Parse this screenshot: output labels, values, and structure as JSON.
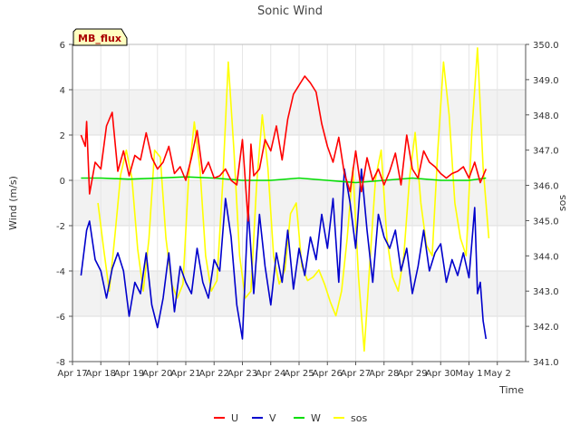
{
  "chart_data": {
    "type": "line",
    "title": "Sonic Wind",
    "badge": "MB_flux",
    "xlabel": "Time",
    "ylabel": "Wind (m/s)",
    "y2label": "sos",
    "xlim": [
      0,
      16
    ],
    "ylim": [
      -8,
      6
    ],
    "y2lim": [
      341.0,
      350.0
    ],
    "x_tick_values": [
      0,
      1,
      2,
      3,
      4,
      5,
      6,
      7,
      8,
      9,
      10,
      11,
      12,
      13,
      14,
      15
    ],
    "x_tick_labels": [
      "Apr 17",
      "Apr 18",
      "Apr 19",
      "Apr 20",
      "Apr 21",
      "Apr 22",
      "Apr 23",
      "Apr 24",
      "Apr 25",
      "Apr 26",
      "Apr 27",
      "Apr 28",
      "Apr 29",
      "Apr 30",
      "May 1",
      "May 2"
    ],
    "y_ticks": [
      -8,
      -6,
      -4,
      -2,
      0,
      2,
      4,
      6
    ],
    "y2_ticks": [
      341.0,
      342.0,
      343.0,
      344.0,
      345.0,
      346.0,
      347.0,
      348.0,
      349.0,
      350.0
    ],
    "grid": true,
    "legend_position": "bottom-center",
    "series": [
      {
        "name": "U",
        "color": "#ff0000",
        "axis": "left",
        "x": [
          0.3,
          0.45,
          0.5,
          0.6,
          0.8,
          1.0,
          1.2,
          1.4,
          1.6,
          1.8,
          2.0,
          2.2,
          2.4,
          2.6,
          2.8,
          3.0,
          3.2,
          3.4,
          3.6,
          3.8,
          4.0,
          4.2,
          4.4,
          4.6,
          4.8,
          5.0,
          5.2,
          5.4,
          5.6,
          5.8,
          6.0,
          6.2,
          6.3,
          6.4,
          6.6,
          6.8,
          7.0,
          7.2,
          7.4,
          7.6,
          7.8,
          8.0,
          8.2,
          8.4,
          8.6,
          8.8,
          9.0,
          9.2,
          9.4,
          9.6,
          9.8,
          10.0,
          10.2,
          10.4,
          10.6,
          10.8,
          11.0,
          11.2,
          11.4,
          11.6,
          11.8,
          12.0,
          12.2,
          12.4,
          12.6,
          12.8,
          13.0,
          13.2,
          13.4,
          13.6,
          13.8,
          14.0,
          14.2,
          14.4,
          14.6
        ],
        "y": [
          2.0,
          1.5,
          2.6,
          -0.6,
          0.8,
          0.5,
          2.4,
          3.0,
          0.4,
          1.3,
          0.2,
          1.1,
          0.9,
          2.1,
          1.0,
          0.5,
          0.8,
          1.5,
          0.3,
          0.6,
          0.0,
          1.0,
          2.2,
          0.3,
          0.8,
          0.1,
          0.2,
          0.5,
          0.0,
          -0.2,
          1.8,
          -1.8,
          1.6,
          0.2,
          0.5,
          1.8,
          1.3,
          2.4,
          0.9,
          2.7,
          3.8,
          4.2,
          4.6,
          4.3,
          3.9,
          2.5,
          1.5,
          0.8,
          1.9,
          0.3,
          -0.5,
          1.3,
          -0.5,
          1.0,
          0.0,
          0.5,
          -0.2,
          0.4,
          1.2,
          -0.2,
          2.0,
          0.5,
          0.1,
          1.3,
          0.8,
          0.6,
          0.3,
          0.1,
          0.3,
          0.4,
          0.6,
          0.1,
          0.8,
          -0.1,
          0.5
        ]
      },
      {
        "name": "V",
        "color": "#0000cc",
        "axis": "left",
        "x": [
          0.3,
          0.5,
          0.6,
          0.8,
          1.0,
          1.2,
          1.4,
          1.6,
          1.8,
          2.0,
          2.2,
          2.4,
          2.6,
          2.8,
          3.0,
          3.2,
          3.4,
          3.6,
          3.8,
          4.0,
          4.2,
          4.4,
          4.6,
          4.8,
          5.0,
          5.2,
          5.4,
          5.6,
          5.8,
          6.0,
          6.2,
          6.4,
          6.6,
          6.8,
          7.0,
          7.2,
          7.4,
          7.6,
          7.8,
          8.0,
          8.2,
          8.4,
          8.6,
          8.8,
          9.0,
          9.2,
          9.4,
          9.6,
          9.8,
          10.0,
          10.2,
          10.4,
          10.6,
          10.8,
          11.0,
          11.2,
          11.4,
          11.6,
          11.8,
          12.0,
          12.2,
          12.4,
          12.6,
          12.8,
          13.0,
          13.2,
          13.4,
          13.6,
          13.8,
          14.0,
          14.2,
          14.3,
          14.4,
          14.5,
          14.6
        ],
        "y": [
          -4.2,
          -2.2,
          -1.8,
          -3.5,
          -4.0,
          -5.2,
          -3.9,
          -3.2,
          -4.0,
          -6.0,
          -4.5,
          -5.0,
          -3.2,
          -5.5,
          -6.5,
          -5.2,
          -3.2,
          -5.8,
          -3.8,
          -4.5,
          -5.0,
          -3.0,
          -4.5,
          -5.2,
          -3.5,
          -4.0,
          -0.8,
          -2.5,
          -5.5,
          -7.0,
          -1.2,
          -5.0,
          -1.5,
          -3.8,
          -5.5,
          -3.2,
          -4.5,
          -2.2,
          -4.8,
          -3.0,
          -4.2,
          -2.5,
          -3.5,
          -1.5,
          -3.0,
          -0.8,
          -4.5,
          0.5,
          -1.0,
          -3.0,
          0.5,
          -2.2,
          -4.5,
          -1.5,
          -2.5,
          -3.0,
          -2.2,
          -4.0,
          -3.0,
          -5.0,
          -3.8,
          -2.2,
          -4.0,
          -3.2,
          -2.8,
          -4.5,
          -3.5,
          -4.2,
          -3.2,
          -4.3,
          -1.2,
          -5.0,
          -4.5,
          -6.2,
          -7.0
        ]
      },
      {
        "name": "W",
        "color": "#00dd00",
        "axis": "left",
        "x": [
          0.3,
          1.0,
          2.0,
          3.0,
          4.0,
          5.0,
          6.0,
          7.0,
          8.0,
          9.0,
          10.0,
          11.0,
          12.0,
          13.0,
          14.0,
          14.6
        ],
        "y": [
          0.1,
          0.1,
          0.05,
          0.1,
          0.15,
          0.1,
          0.0,
          0.0,
          0.1,
          0.0,
          -0.1,
          0.0,
          0.1,
          0.0,
          0.0,
          0.1
        ]
      },
      {
        "name": "sos",
        "color": "#ffff00",
        "axis": "right",
        "x": [
          0.9,
          1.1,
          1.3,
          1.5,
          1.7,
          1.9,
          2.1,
          2.3,
          2.5,
          2.7,
          2.9,
          3.1,
          3.3,
          3.5,
          3.7,
          3.9,
          4.1,
          4.3,
          4.5,
          4.7,
          4.9,
          5.1,
          5.3,
          5.5,
          5.7,
          5.9,
          6.1,
          6.3,
          6.5,
          6.7,
          6.9,
          7.1,
          7.3,
          7.5,
          7.7,
          7.9,
          8.1,
          8.3,
          8.5,
          8.7,
          8.9,
          9.1,
          9.3,
          9.5,
          9.7,
          9.9,
          10.1,
          10.3,
          10.5,
          10.7,
          10.9,
          11.1,
          11.3,
          11.5,
          11.7,
          11.9,
          12.1,
          12.3,
          12.5,
          12.7,
          12.9,
          13.1,
          13.3,
          13.5,
          13.7,
          13.9,
          14.1,
          14.3,
          14.5,
          14.7
        ],
        "y": [
          345.5,
          344.2,
          343.0,
          344.6,
          346.3,
          347.0,
          346.2,
          344.2,
          343.0,
          344.5,
          347.0,
          346.8,
          344.5,
          343.2,
          342.8,
          343.2,
          346.2,
          347.8,
          346.5,
          344.0,
          343.0,
          343.3,
          346.0,
          349.5,
          347.0,
          344.0,
          342.8,
          343.0,
          346.0,
          348.0,
          346.5,
          344.0,
          343.2,
          343.6,
          345.2,
          345.5,
          343.7,
          343.3,
          343.4,
          343.6,
          343.2,
          342.7,
          342.3,
          343.0,
          344.5,
          346.5,
          343.4,
          341.3,
          343.8,
          346.2,
          347.0,
          344.5,
          343.4,
          343.0,
          344.0,
          346.2,
          347.5,
          345.5,
          344.3,
          344.0,
          347.0,
          349.5,
          348.0,
          345.5,
          344.5,
          344.0,
          347.5,
          349.9,
          346.5,
          344.5
        ]
      }
    ]
  }
}
